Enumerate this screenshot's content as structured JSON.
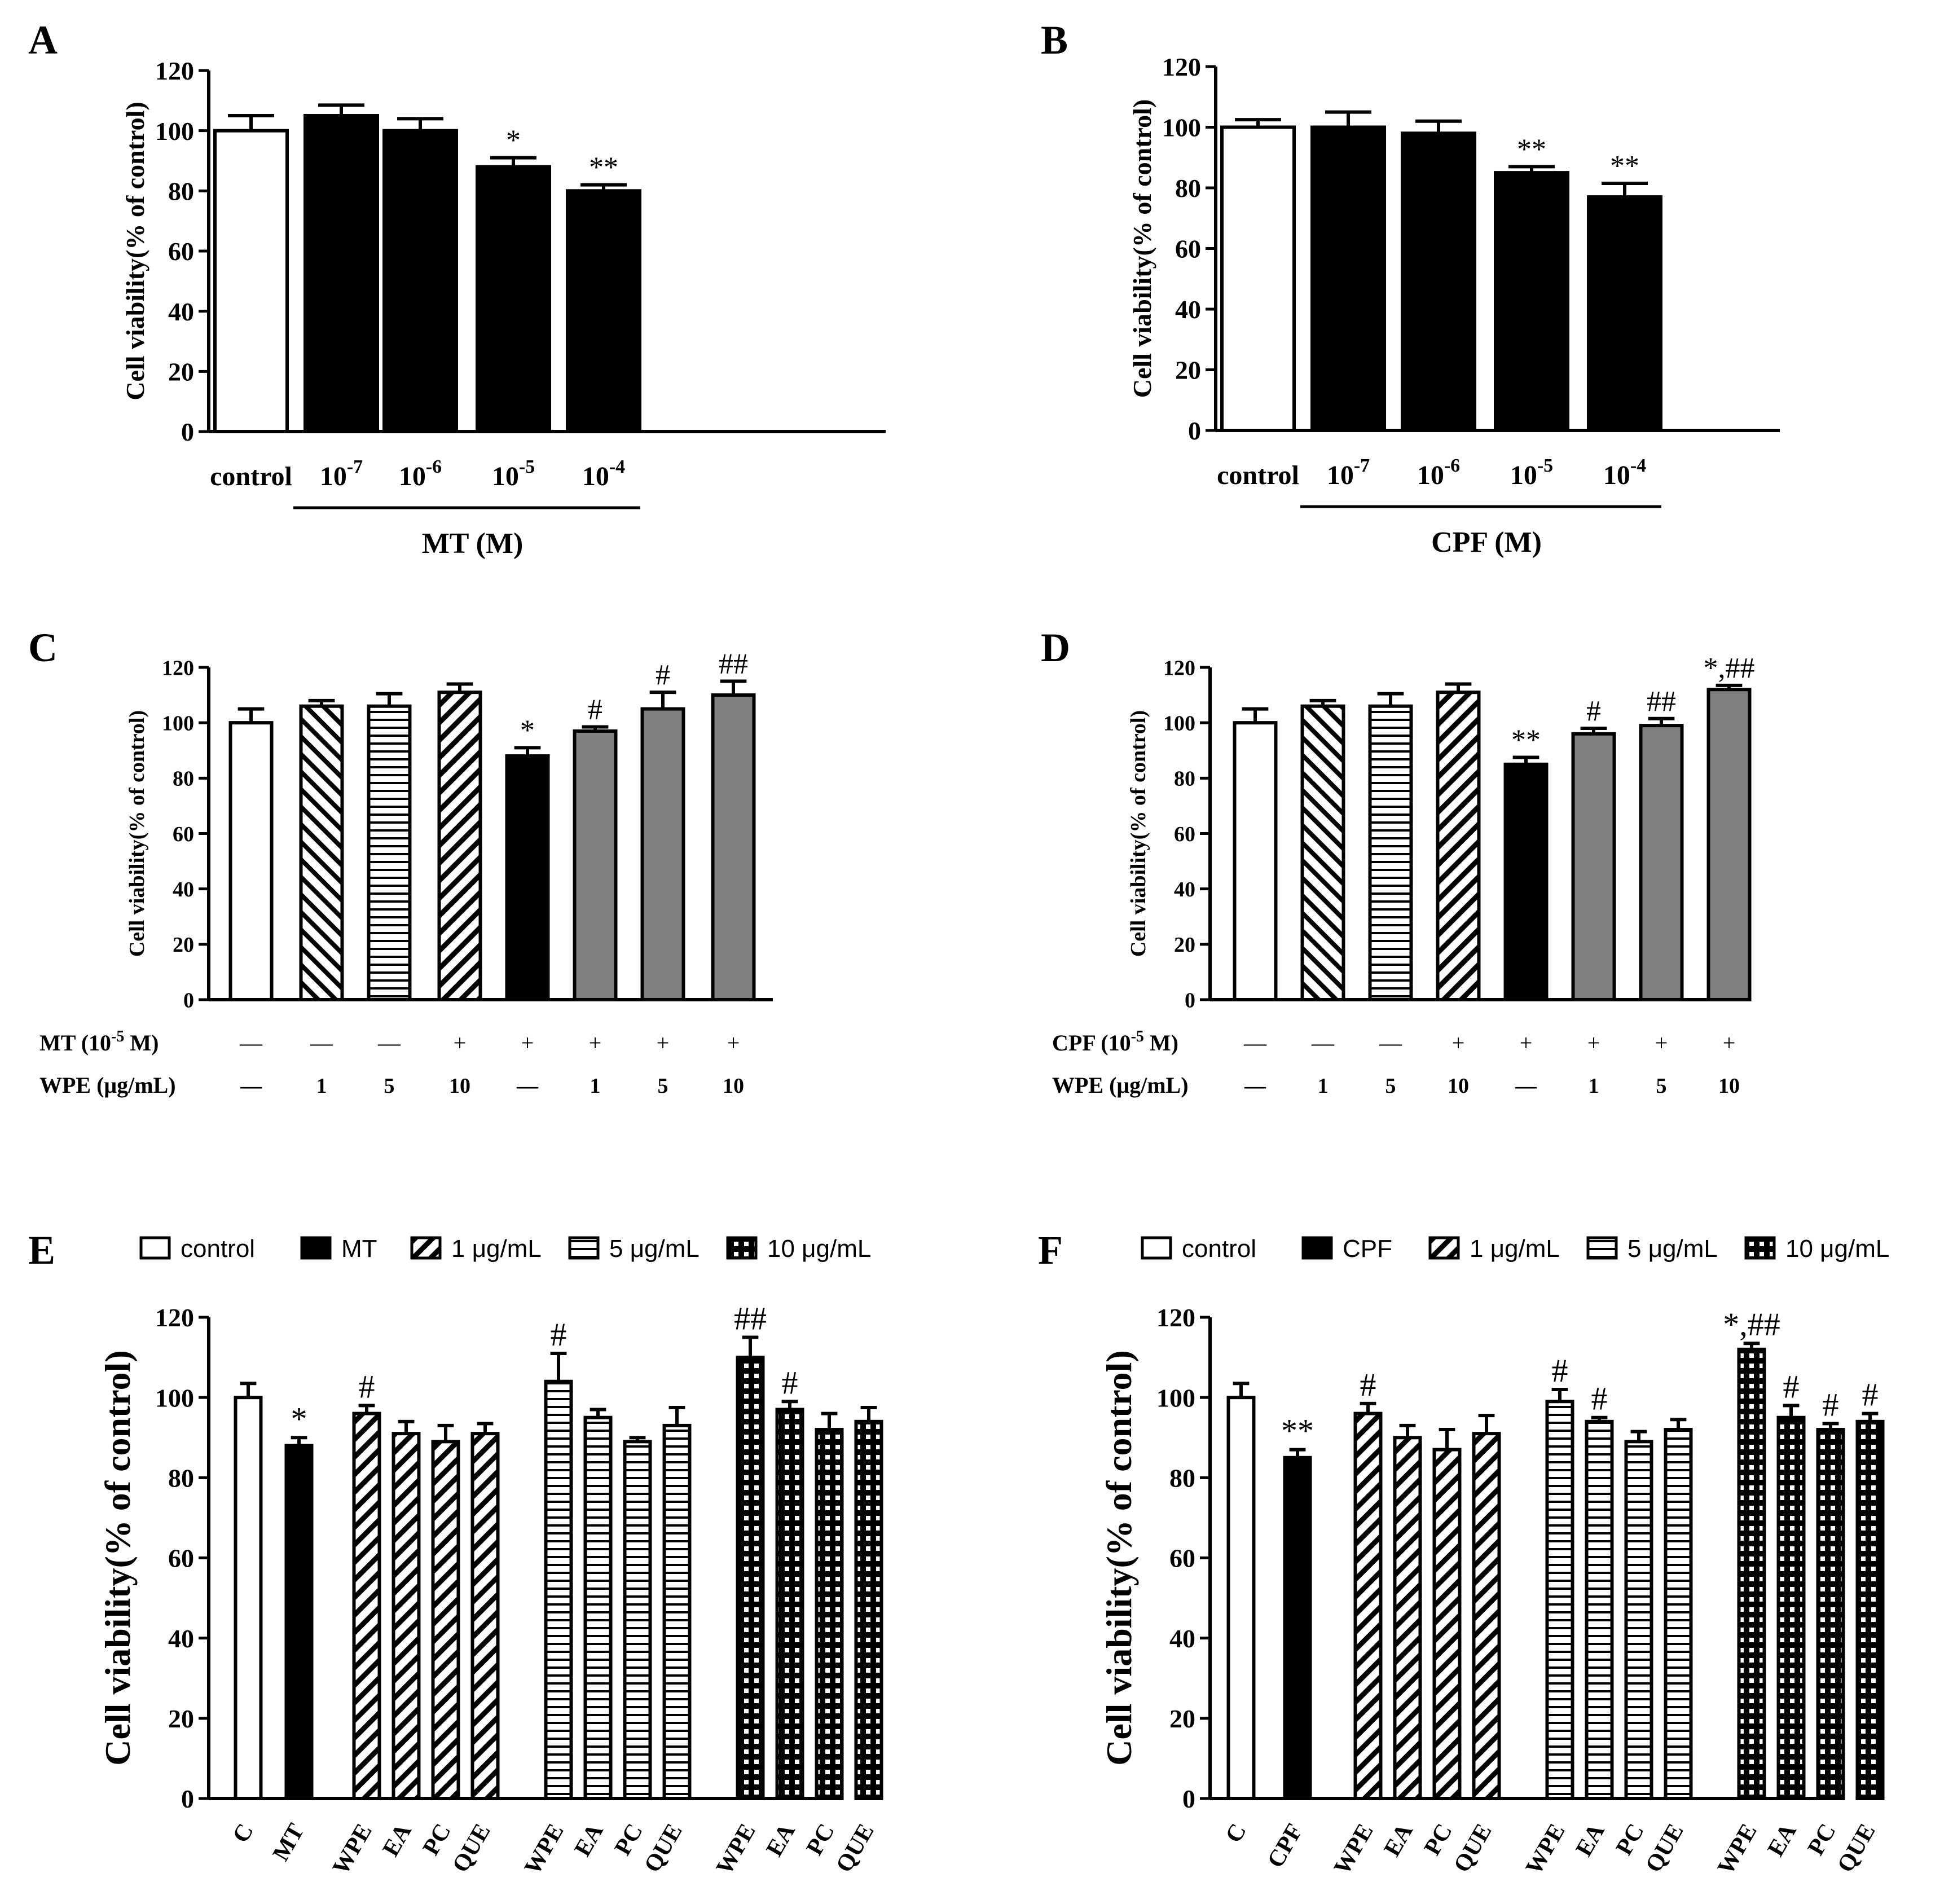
{
  "chart_data": [
    {
      "panel": "A",
      "type": "bar",
      "ylabel": "Cell viability(% of control)",
      "ylim": [
        0,
        120
      ],
      "yticks": [
        "0",
        "20",
        "40",
        "60",
        "80",
        "100",
        "120"
      ],
      "categories": [
        {
          "base": "control",
          "exp": ""
        },
        {
          "base": "10",
          "exp": "-7"
        },
        {
          "base": "10",
          "exp": "-6"
        },
        {
          "base": "10",
          "exp": "-5"
        },
        {
          "base": "10",
          "exp": "-4"
        }
      ],
      "values": [
        100,
        105,
        100,
        88,
        80
      ],
      "errors": [
        5,
        3.5,
        4,
        3,
        2
      ],
      "fills": [
        "white",
        "black",
        "black",
        "black",
        "black"
      ],
      "annotations": [
        "",
        "",
        "",
        "*",
        "**"
      ],
      "group_label": "MT (M)"
    },
    {
      "panel": "B",
      "type": "bar",
      "ylabel": "Cell viability(% of control)",
      "ylim": [
        0,
        120
      ],
      "yticks": [
        "0",
        "20",
        "40",
        "60",
        "80",
        "100",
        "120"
      ],
      "categories": [
        {
          "base": "control",
          "exp": ""
        },
        {
          "base": "10",
          "exp": "-7"
        },
        {
          "base": "10",
          "exp": "-6"
        },
        {
          "base": "10",
          "exp": "-5"
        },
        {
          "base": "10",
          "exp": "-4"
        }
      ],
      "values": [
        100,
        100,
        98,
        85,
        77
      ],
      "errors": [
        2.5,
        5,
        4,
        2,
        4.5
      ],
      "fills": [
        "white",
        "black",
        "black",
        "black",
        "black"
      ],
      "annotations": [
        "",
        "",
        "",
        "**",
        "**"
      ],
      "group_label": "CPF (M)"
    },
    {
      "panel": "C",
      "type": "bar",
      "ylabel": "Cell viability(% of control)",
      "ylim": [
        0,
        120
      ],
      "yticks": [
        "0",
        "20",
        "40",
        "60",
        "80",
        "100",
        "120"
      ],
      "values": [
        100,
        106,
        106,
        111,
        88,
        97,
        105,
        110
      ],
      "errors": [
        5,
        2,
        4.5,
        3,
        3,
        1.5,
        6,
        5
      ],
      "fills": [
        "white",
        "diag-back",
        "hlines",
        "diag-fwd",
        "black",
        "gray",
        "gray",
        "gray"
      ],
      "annotations": [
        "",
        "",
        "",
        "",
        "*",
        "#",
        "#",
        "##"
      ],
      "row1_label": "MT  (10",
      "row1_exp": "-5",
      "row1_tail": " M)",
      "row2_label": "WPE (μg/mL)",
      "row1": [
        "—",
        "—",
        "—",
        "+",
        "+",
        "+",
        "+",
        "+"
      ],
      "row2": [
        "—",
        "1",
        "5",
        "10",
        "—",
        "1",
        "5",
        "10"
      ]
    },
    {
      "panel": "D",
      "type": "bar",
      "ylabel": "Cell viability(% of control)",
      "ylim": [
        0,
        120
      ],
      "yticks": [
        "0",
        "20",
        "40",
        "60",
        "80",
        "100",
        "120"
      ],
      "values": [
        100,
        106,
        106,
        111,
        85,
        96,
        99,
        112
      ],
      "errors": [
        5,
        2,
        4.5,
        3,
        2.5,
        2,
        2.5,
        1.5
      ],
      "fills": [
        "white",
        "diag-back",
        "hlines",
        "diag-fwd",
        "black",
        "gray",
        "gray",
        "gray"
      ],
      "annotations": [
        "",
        "",
        "",
        "",
        "**",
        "#",
        "##",
        "*,##"
      ],
      "row1_label": "CPF  (10",
      "row1_exp": "-5",
      "row1_tail": " M)",
      "row2_label": "WPE (μg/mL)",
      "row1": [
        "—",
        "—",
        "—",
        "+",
        "+",
        "+",
        "+",
        "+"
      ],
      "row2": [
        "—",
        "1",
        "5",
        "10",
        "—",
        "1",
        "5",
        "10"
      ]
    },
    {
      "panel": "E",
      "type": "bar",
      "ylabel": "Cell viability(% of control)",
      "ylim": [
        0,
        120
      ],
      "yticks": [
        "0",
        "20",
        "40",
        "60",
        "80",
        "100",
        "120"
      ],
      "legend": [
        "control",
        "MT",
        "1 μg/mL",
        "5 μg/mL",
        "10 μg/mL"
      ],
      "legend_fills": [
        "white",
        "black",
        "diag-fwd",
        "hlines",
        "grid"
      ],
      "categories": [
        "C",
        "MT",
        "WPE",
        "EA",
        "PC",
        "QUE",
        "WPE",
        "EA",
        "PC",
        "QUE",
        "WPE",
        "EA",
        "PC",
        "QUE"
      ],
      "values": [
        100,
        88,
        96,
        91,
        89,
        91,
        104,
        95,
        89,
        93,
        110,
        97,
        92,
        94
      ],
      "errors": [
        3.5,
        2,
        2,
        3,
        4,
        2.5,
        7,
        2,
        1,
        4.5,
        5,
        2,
        4,
        3.5
      ],
      "fills": [
        "white",
        "black",
        "diag-fwd",
        "diag-fwd",
        "diag-fwd",
        "diag-fwd",
        "hlines",
        "hlines",
        "hlines",
        "hlines",
        "grid",
        "grid",
        "grid",
        "grid"
      ],
      "annotations": [
        "",
        "*",
        "#",
        "",
        "",
        "",
        "#",
        "",
        "",
        "",
        "##",
        "#",
        "",
        ""
      ]
    },
    {
      "panel": "F",
      "type": "bar",
      "ylabel": "Cell viability(% of control)",
      "ylim": [
        0,
        120
      ],
      "yticks": [
        "0",
        "20",
        "40",
        "60",
        "80",
        "100",
        "120"
      ],
      "legend": [
        "control",
        "CPF",
        "1 μg/mL",
        "5 μg/mL",
        "10 μg/mL"
      ],
      "legend_fills": [
        "white",
        "black",
        "diag-fwd",
        "hlines",
        "grid"
      ],
      "categories": [
        "C",
        "CPF",
        "WPE",
        "EA",
        "PC",
        "QUE",
        "WPE",
        "EA",
        "PC",
        "QUE",
        "WPE",
        "EA",
        "PC",
        "QUE"
      ],
      "values": [
        100,
        85,
        96,
        90,
        87,
        91,
        99,
        94,
        89,
        92,
        112,
        95,
        92,
        94
      ],
      "errors": [
        3.5,
        2,
        2.5,
        3,
        5,
        4.5,
        3,
        1,
        2.5,
        2.5,
        1.5,
        3,
        1.5,
        2
      ],
      "fills": [
        "white",
        "black",
        "diag-fwd",
        "diag-fwd",
        "diag-fwd",
        "diag-fwd",
        "hlines",
        "hlines",
        "hlines",
        "hlines",
        "grid",
        "grid",
        "grid",
        "grid"
      ],
      "annotations": [
        "",
        "**",
        "#",
        "",
        "",
        "",
        "#",
        "#",
        "",
        "",
        "*,##",
        "#",
        "#",
        "#"
      ]
    }
  ]
}
